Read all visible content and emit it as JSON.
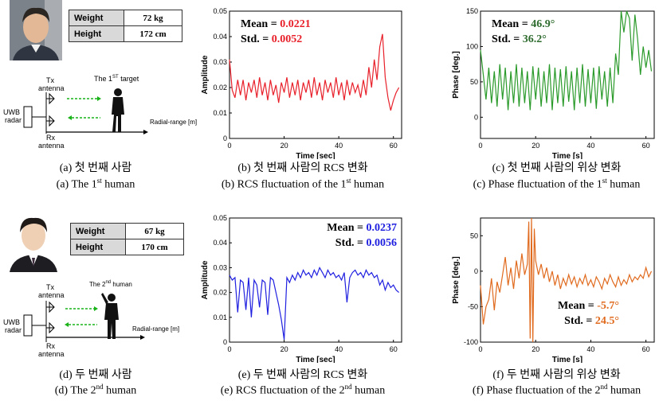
{
  "panels": {
    "a": {
      "table": [
        {
          "key": "Weight",
          "value": "72 kg"
        },
        {
          "key": "Height",
          "value": "172 cm"
        }
      ],
      "diagram": {
        "tx": "Tx",
        "tx2": "antenna",
        "rx": "Rx",
        "rx2": "antenna",
        "uwb": "UWB",
        "uwb2": "radar",
        "target_pre": "The 1",
        "target_sup": "ST",
        "target_post": " target",
        "range": "Radial-range [m]"
      },
      "caption_kr": "(a) 첫 번째 사람",
      "caption_en_pre": "(a) The 1",
      "caption_en_sup": "st",
      "caption_en_post": " human"
    },
    "d": {
      "table": [
        {
          "key": "Weight",
          "value": "67 kg"
        },
        {
          "key": "Height",
          "value": "170 cm"
        }
      ],
      "diagram": {
        "tx": "Tx",
        "tx2": "antenna",
        "rx": "Rx",
        "rx2": "antenna",
        "uwb": "UWB",
        "uwb2": "radar",
        "target_pre": "The 2",
        "target_sup": "nd",
        "target_post": " human",
        "range": "Radial-range [m]"
      },
      "caption_kr": "(d) 두 번째 사람",
      "caption_en_pre": "(d) The 2",
      "caption_en_sup": "nd",
      "caption_en_post": " human"
    },
    "b": {
      "caption_kr": "(b) 첫 번째 사람의 RCS 변화",
      "caption_en_pre": "(b) RCS fluctuation of the 1",
      "caption_en_sup": "st",
      "caption_en_post": " human"
    },
    "c": {
      "caption_kr": "(c) 첫 번째 사람의 위상 변화",
      "caption_en_pre": "(c) Phase fluctuation of the 1",
      "caption_en_sup": "st",
      "caption_en_post": " human"
    },
    "e": {
      "caption_kr": "(e) 두 번째 사람의 RCS 변화",
      "caption_en_pre": "(e) RCS fluctuation of the 2",
      "caption_en_sup": "nd",
      "caption_en_post": " human"
    },
    "f": {
      "caption_kr": "(f) 두 번째 사람의 위상 변화",
      "caption_en_pre": "(f) Phase fluctuation of the 2",
      "caption_en_sup": "nd",
      "caption_en_post": " human"
    }
  },
  "chart_data": [
    {
      "id": "b",
      "type": "line",
      "xlabel": "Time [sec]",
      "ylabel": "Amplitude",
      "xlim": [
        0,
        63
      ],
      "ylim": [
        0,
        0.05
      ],
      "xticks": [
        0,
        20,
        40,
        60
      ],
      "yticks": [
        0,
        0.01,
        0.02,
        0.03,
        0.04,
        0.05
      ],
      "color": "#e8202a",
      "mean_label": "Mean =",
      "mean": "0.0221",
      "std_label": "Std. =",
      "std": "0.0052",
      "stat_color": "#e8202a",
      "series": [
        {
          "x": [
            0,
            1,
            2,
            3,
            4,
            5,
            6,
            7,
            8,
            9,
            10,
            11,
            12,
            13,
            14,
            15,
            16,
            17,
            18,
            19,
            20,
            21,
            22,
            23,
            24,
            25,
            26,
            27,
            28,
            29,
            30,
            31,
            32,
            33,
            34,
            35,
            36,
            37,
            38,
            39,
            40,
            41,
            42,
            43,
            44,
            45,
            46,
            47,
            48,
            49,
            50,
            51,
            52,
            53,
            54,
            55,
            56,
            57,
            58,
            59,
            60,
            61,
            62
          ],
          "y": [
            0.031,
            0.019,
            0.016,
            0.023,
            0.017,
            0.023,
            0.015,
            0.022,
            0.018,
            0.023,
            0.016,
            0.024,
            0.017,
            0.022,
            0.015,
            0.023,
            0.017,
            0.021,
            0.014,
            0.022,
            0.018,
            0.024,
            0.016,
            0.022,
            0.017,
            0.023,
            0.015,
            0.022,
            0.018,
            0.023,
            0.016,
            0.024,
            0.017,
            0.022,
            0.015,
            0.023,
            0.018,
            0.022,
            0.016,
            0.024,
            0.017,
            0.022,
            0.015,
            0.023,
            0.017,
            0.022,
            0.018,
            0.021,
            0.016,
            0.023,
            0.017,
            0.028,
            0.02,
            0.031,
            0.023,
            0.036,
            0.041,
            0.024,
            0.016,
            0.011,
            0.015,
            0.018,
            0.02
          ]
        }
      ]
    },
    {
      "id": "c",
      "type": "line",
      "xlabel": "Time [s]",
      "ylabel": "Phase [deg.]",
      "xlim": [
        0,
        63
      ],
      "ylim": [
        -30,
        150
      ],
      "xticks": [
        0,
        20,
        40,
        60
      ],
      "yticks": [
        0,
        50,
        100,
        150
      ],
      "color": "#2a9a2a",
      "mean_label": "Mean =",
      "mean": "46.9°",
      "std_label": "Std. =",
      "std": "36.2°",
      "stat_color": "#2e6b2e",
      "series": [
        {
          "x": [
            0,
            1,
            2,
            3,
            4,
            5,
            6,
            7,
            8,
            9,
            10,
            11,
            12,
            13,
            14,
            15,
            16,
            17,
            18,
            19,
            20,
            21,
            22,
            23,
            24,
            25,
            26,
            27,
            28,
            29,
            30,
            31,
            32,
            33,
            34,
            35,
            36,
            37,
            38,
            39,
            40,
            41,
            42,
            43,
            44,
            45,
            46,
            47,
            48,
            49,
            50,
            51,
            52,
            53,
            54,
            55,
            56,
            57,
            58,
            59,
            60,
            61,
            62
          ],
          "y": [
            95,
            60,
            25,
            70,
            20,
            65,
            15,
            75,
            25,
            70,
            10,
            65,
            20,
            75,
            15,
            70,
            20,
            65,
            10,
            72,
            25,
            70,
            15,
            65,
            20,
            75,
            10,
            70,
            20,
            68,
            15,
            72,
            22,
            65,
            10,
            70,
            20,
            75,
            15,
            68,
            20,
            70,
            12,
            72,
            25,
            65,
            15,
            70,
            20,
            90,
            60,
            150,
            120,
            150,
            140,
            80,
            145,
            110,
            60,
            100,
            70,
            95,
            65
          ]
        }
      ]
    },
    {
      "id": "e",
      "type": "line",
      "xlabel": "Time [sec]",
      "ylabel": "Amplitude",
      "xlim": [
        0,
        63
      ],
      "ylim": [
        0,
        0.05
      ],
      "xticks": [
        0,
        20,
        40,
        60
      ],
      "yticks": [
        0,
        0.01,
        0.02,
        0.03,
        0.04,
        0.05
      ],
      "color": "#2020e0",
      "mean_label": "Mean =",
      "mean": "0.0237",
      "std_label": "Std. =",
      "std": "0.0056",
      "stat_color": "#2020e0",
      "series": [
        {
          "x": [
            0,
            1,
            2,
            3,
            4,
            5,
            6,
            7,
            8,
            9,
            10,
            11,
            12,
            13,
            14,
            15,
            16,
            17,
            18,
            19,
            20,
            21,
            22,
            23,
            24,
            25,
            26,
            27,
            28,
            29,
            30,
            31,
            32,
            33,
            34,
            35,
            36,
            37,
            38,
            39,
            40,
            41,
            42,
            43,
            44,
            45,
            46,
            47,
            48,
            49,
            50,
            51,
            52,
            53,
            54,
            55,
            56,
            57,
            58,
            59,
            60,
            61,
            62
          ],
          "y": [
            0.027,
            0.025,
            0.026,
            0.012,
            0.025,
            0.024,
            0.013,
            0.026,
            0.01,
            0.025,
            0.023,
            0.014,
            0.025,
            0.024,
            0.011,
            0.026,
            0.025,
            0.02,
            0.015,
            0.009,
            0.001,
            0.026,
            0.024,
            0.027,
            0.025,
            0.028,
            0.026,
            0.029,
            0.027,
            0.028,
            0.026,
            0.029,
            0.027,
            0.03,
            0.028,
            0.026,
            0.029,
            0.027,
            0.028,
            0.026,
            0.027,
            0.025,
            0.028,
            0.016,
            0.026,
            0.028,
            0.029,
            0.027,
            0.028,
            0.026,
            0.029,
            0.027,
            0.028,
            0.026,
            0.027,
            0.023,
            0.025,
            0.021,
            0.024,
            0.022,
            0.023,
            0.021,
            0.02
          ]
        }
      ]
    },
    {
      "id": "f",
      "type": "line",
      "xlabel": "Time [s]",
      "ylabel": "Phase [deg.]",
      "xlim": [
        0,
        63
      ],
      "ylim": [
        -100,
        75
      ],
      "xticks": [
        0,
        20,
        40,
        60
      ],
      "yticks": [
        -100,
        -50,
        0,
        50
      ],
      "color": "#e06a1e",
      "mean_label": "Mean =",
      "mean": "-5.7°",
      "std_label": "Std. =",
      "std": "24.5°",
      "stat_color": "#e06a1e",
      "series": [
        {
          "x": [
            0,
            1,
            2,
            3,
            4,
            5,
            6,
            7,
            8,
            9,
            10,
            11,
            12,
            13,
            14,
            15,
            16,
            17,
            17.5,
            18,
            18.5,
            19,
            19.5,
            20,
            21,
            22,
            23,
            24,
            25,
            26,
            27,
            28,
            29,
            30,
            31,
            32,
            33,
            34,
            35,
            36,
            37,
            38,
            39,
            40,
            41,
            42,
            43,
            44,
            45,
            46,
            47,
            48,
            49,
            50,
            51,
            52,
            53,
            54,
            55,
            56,
            57,
            58,
            59,
            60,
            61,
            62
          ],
          "y": [
            -20,
            -75,
            -50,
            -40,
            -10,
            -55,
            -15,
            -30,
            -5,
            20,
            -20,
            5,
            -25,
            15,
            -10,
            25,
            -5,
            10,
            70,
            -95,
            75,
            -100,
            60,
            15,
            -5,
            10,
            -10,
            5,
            -15,
            0,
            -20,
            -5,
            -25,
            -10,
            -20,
            -5,
            -18,
            -8,
            -22,
            -10,
            -18,
            -5,
            -20,
            -12,
            -22,
            -8,
            -15,
            -25,
            -10,
            -18,
            -5,
            -15,
            -22,
            -8,
            -20,
            -12,
            -18,
            -5,
            -15,
            -8,
            -12,
            -5,
            -10,
            5,
            -8,
            0
          ]
        }
      ]
    }
  ]
}
